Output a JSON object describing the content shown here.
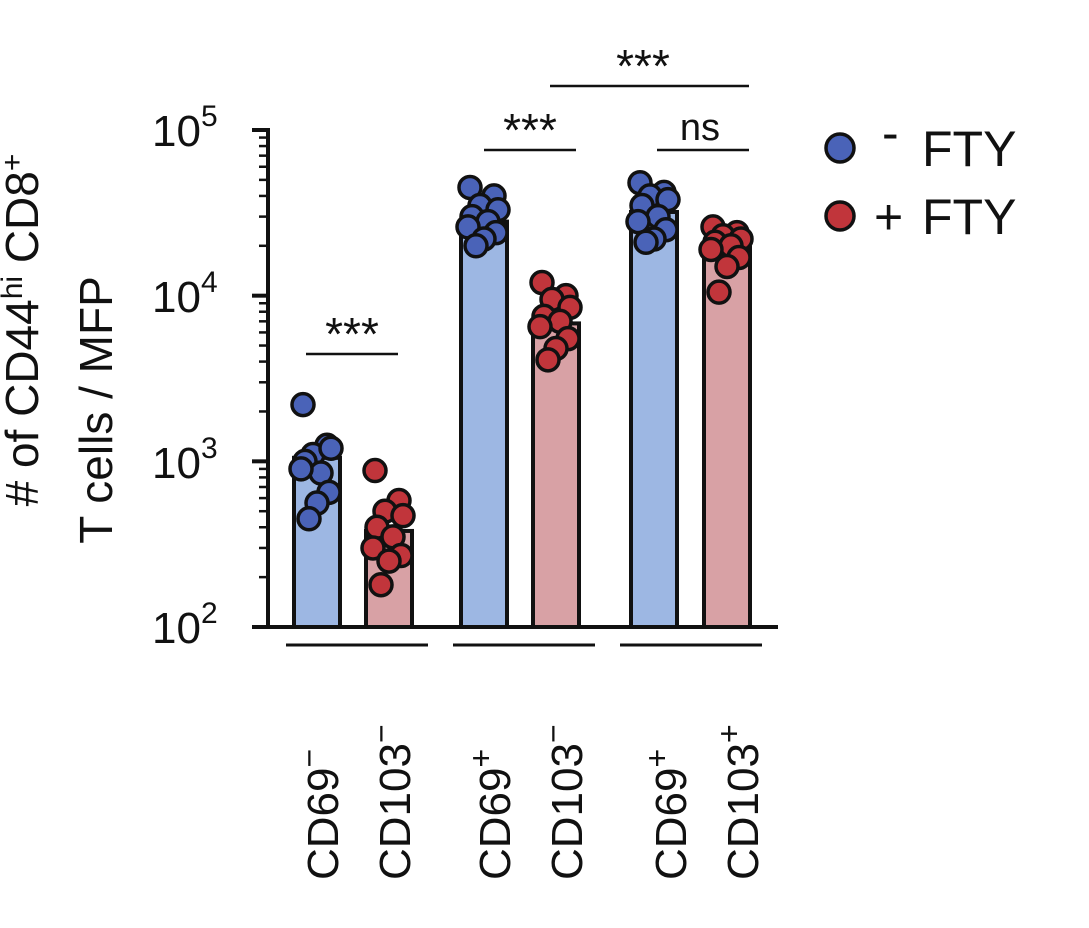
{
  "chart_data": {
    "type": "bar",
    "yscale": "log",
    "ylim": [
      100,
      100000
    ],
    "yticks": [
      {
        "value": 100,
        "base": "10",
        "exp": "2"
      },
      {
        "value": 1000,
        "base": "10",
        "exp": "3"
      },
      {
        "value": 10000,
        "base": "10",
        "exp": "4"
      },
      {
        "value": 100000,
        "base": "10",
        "exp": "5"
      }
    ],
    "ylabel": {
      "line1": "# of CD44",
      "line1_sup1": "hi",
      "line1_mid": " CD8",
      "line1_sup2": "+",
      "line2": "T cells / MFP"
    },
    "groups": [
      {
        "cd69": "CD69",
        "cd69_sign": "−",
        "cd103": "CD103",
        "cd103_sign": "−"
      },
      {
        "cd69": "CD69",
        "cd69_sign": "+",
        "cd103": "CD103",
        "cd103_sign": "−"
      },
      {
        "cd69": "CD69",
        "cd69_sign": "+",
        "cd103": "CD103",
        "cd103_sign": "+"
      }
    ],
    "series": [
      {
        "name": "- FTY",
        "bar_color": "#9db7e3",
        "point_color": "#4a63b8",
        "values": [
          1050,
          28000,
          32000
        ],
        "points": [
          [
            2200,
            1250,
            1100,
            1200,
            1000,
            850,
            900,
            650,
            560,
            450
          ],
          [
            45000,
            40000,
            35000,
            33000,
            30000,
            28000,
            26000,
            24000,
            22000,
            20000
          ],
          [
            48000,
            42000,
            40000,
            38000,
            35000,
            30000,
            28000,
            25000,
            22000,
            21000
          ]
        ]
      },
      {
        "name": "+ FTY",
        "bar_color": "#d8a1a5",
        "point_color": "#c1353b",
        "values": [
          380,
          6800,
          19500
        ],
        "points": [
          [
            880,
            580,
            500,
            470,
            400,
            350,
            300,
            270,
            250,
            180
          ],
          [
            12000,
            10000,
            9500,
            8500,
            7500,
            7000,
            6500,
            5500,
            4800,
            4100
          ],
          [
            26000,
            24000,
            23000,
            22000,
            21000,
            20000,
            19000,
            17000,
            15000,
            10500
          ]
        ]
      }
    ],
    "significance": [
      {
        "label": "***",
        "from": [
          0,
          0
        ],
        "to": [
          0,
          1
        ]
      },
      {
        "label": "***",
        "from": [
          1,
          0
        ],
        "to": [
          1,
          1
        ]
      },
      {
        "label": "ns",
        "from": [
          2,
          0
        ],
        "to": [
          2,
          1
        ]
      },
      {
        "label": "***",
        "from": [
          1,
          1
        ],
        "to": [
          2,
          1
        ]
      }
    ],
    "legend": {
      "position": "top-right",
      "entries": [
        {
          "sign": "-",
          "label": "FTY"
        },
        {
          "sign": "+",
          "label": "FTY"
        }
      ]
    }
  }
}
